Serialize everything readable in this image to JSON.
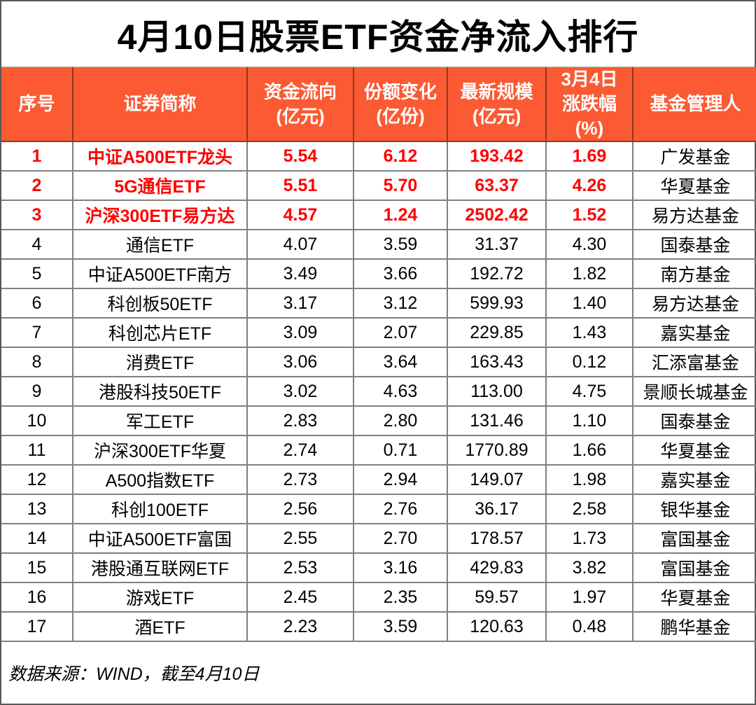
{
  "page": {
    "title": "4月10日股票ETF资金净流入排行",
    "source_note": "数据来源：WIND，截至4月10日"
  },
  "colors": {
    "header_bg": "#FB5A33",
    "header_text": "#FFFFFF",
    "highlight_text": "#FF0000",
    "body_text": "#000000",
    "outer_border": "#595959",
    "inner_border": "#7F7F7F"
  },
  "chart_data": {
    "type": "table",
    "title": "4月10日股票ETF资金净流入排行",
    "columns": [
      "序号",
      "证券简称",
      "资金流向\n(亿元)",
      "份额变化\n(亿份)",
      "最新规模\n(亿元)",
      "3月4日\n涨跌幅\n(%)",
      "基金管理人"
    ],
    "rows": [
      [
        "1",
        "中证A500ETF龙头",
        "5.54",
        "6.12",
        "193.42",
        "1.69",
        "广发基金"
      ],
      [
        "2",
        "5G通信ETF",
        "5.51",
        "5.70",
        "63.37",
        "4.26",
        "华夏基金"
      ],
      [
        "3",
        "沪深300ETF易方达",
        "4.57",
        "1.24",
        "2502.42",
        "1.52",
        "易方达基金"
      ],
      [
        "4",
        "通信ETF",
        "4.07",
        "3.59",
        "31.37",
        "4.30",
        "国泰基金"
      ],
      [
        "5",
        "中证A500ETF南方",
        "3.49",
        "3.66",
        "192.72",
        "1.82",
        "南方基金"
      ],
      [
        "6",
        "科创板50ETF",
        "3.17",
        "3.12",
        "599.93",
        "1.40",
        "易方达基金"
      ],
      [
        "7",
        "科创芯片ETF",
        "3.09",
        "2.07",
        "229.85",
        "1.43",
        "嘉实基金"
      ],
      [
        "8",
        "消费ETF",
        "3.06",
        "3.64",
        "163.43",
        "0.12",
        "汇添富基金"
      ],
      [
        "9",
        "港股科技50ETF",
        "3.02",
        "4.63",
        "113.00",
        "4.75",
        "景顺长城基金"
      ],
      [
        "10",
        "军工ETF",
        "2.83",
        "2.80",
        "131.46",
        "1.10",
        "国泰基金"
      ],
      [
        "11",
        "沪深300ETF华夏",
        "2.74",
        "0.71",
        "1770.89",
        "1.66",
        "华夏基金"
      ],
      [
        "12",
        "A500指数ETF",
        "2.73",
        "2.94",
        "149.07",
        "1.98",
        "嘉实基金"
      ],
      [
        "13",
        "科创100ETF",
        "2.56",
        "2.76",
        "36.17",
        "2.58",
        "银华基金"
      ],
      [
        "14",
        "中证A500ETF富国",
        "2.55",
        "2.70",
        "178.57",
        "1.73",
        "富国基金"
      ],
      [
        "15",
        "港股通互联网ETF",
        "2.53",
        "3.16",
        "429.83",
        "3.82",
        "富国基金"
      ],
      [
        "16",
        "游戏ETF",
        "2.45",
        "2.35",
        "59.57",
        "1.97",
        "华夏基金"
      ],
      [
        "17",
        "酒ETF",
        "2.23",
        "3.59",
        "120.63",
        "0.48",
        "鹏华基金"
      ]
    ],
    "highlighted_row_indexes": [
      0,
      1,
      2
    ],
    "source": "数据来源：WIND，截至4月10日",
    "layout": {
      "legend": "none",
      "grid": "full-borders"
    }
  }
}
